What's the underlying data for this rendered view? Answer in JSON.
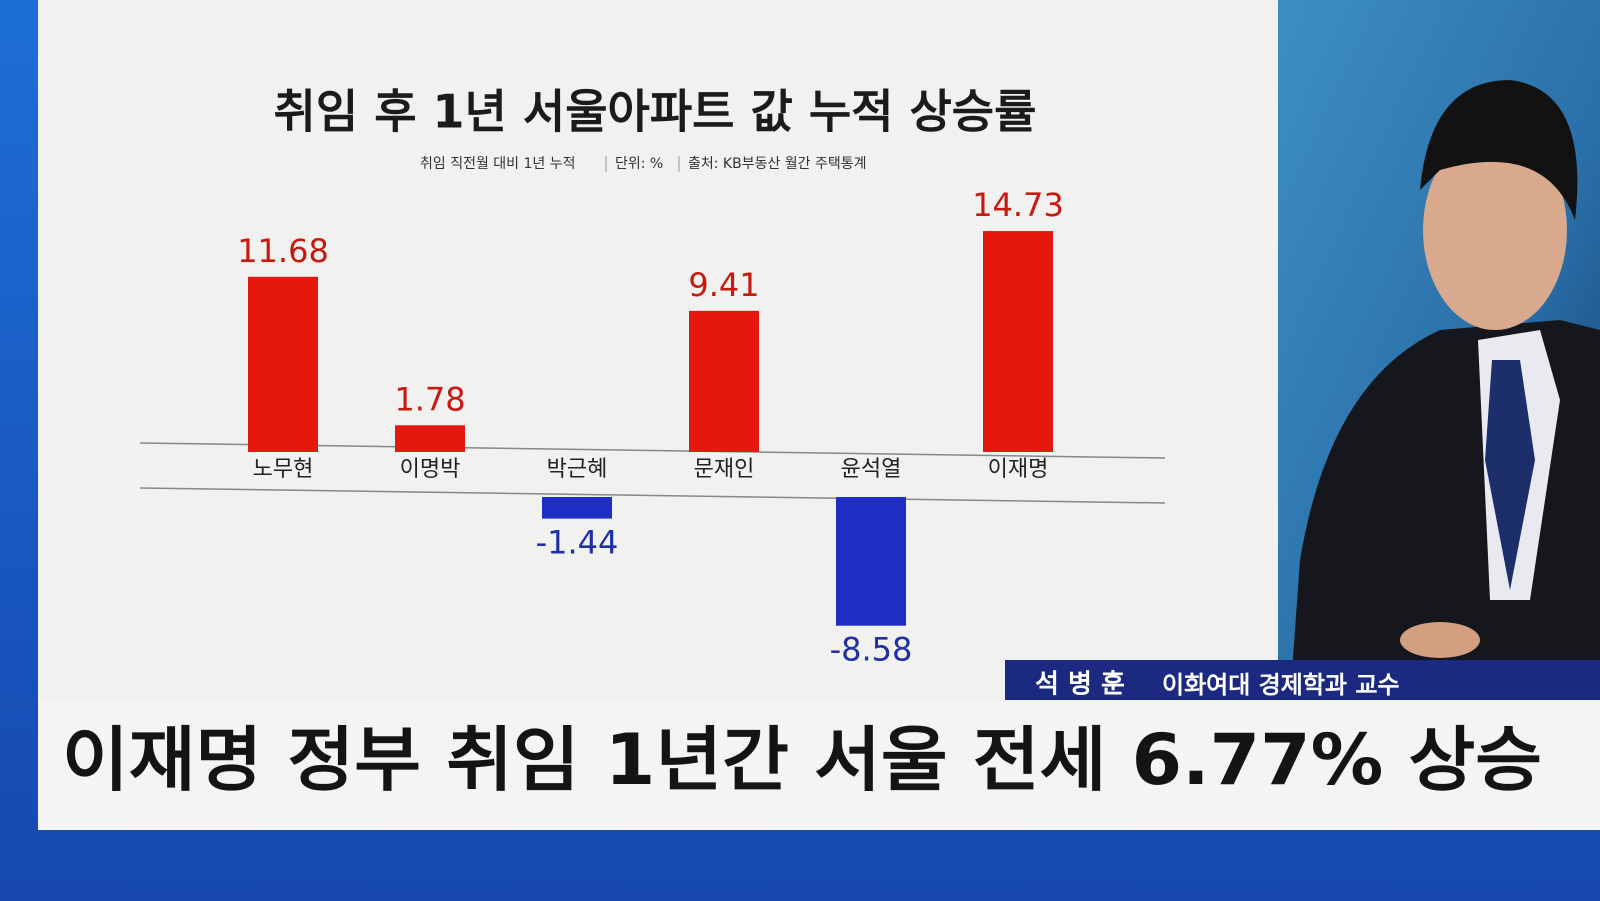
{
  "chart_data": {
    "type": "bar",
    "title": "취임 후 1년 서울아파트 값 누적 상승률",
    "subtitle": [
      "취임 직전월 대비 1년 누적",
      "단위: %",
      "출처: KB부동산 월간 주택통계"
    ],
    "categories": [
      "노무현",
      "이명박",
      "박근혜",
      "문재인",
      "윤석열",
      "이재명"
    ],
    "values": [
      11.68,
      1.78,
      -1.44,
      9.41,
      -8.58,
      14.73
    ],
    "colors": [
      "#e3180f",
      "#e3180f",
      "#1f2fc4",
      "#e3180f",
      "#1f2fc4",
      "#e3180f"
    ]
  },
  "lower_third": {
    "name": "석 병 훈",
    "affiliation": "이화여대 경제학과 교수"
  },
  "headline": "이재명 정부 취임 1년간 서울 전세 6.77% 상승"
}
